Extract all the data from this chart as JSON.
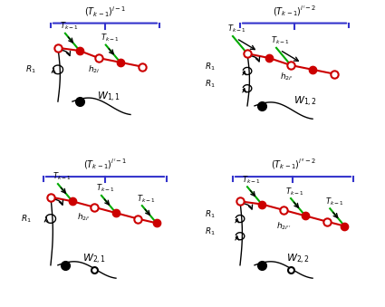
{
  "title": "",
  "background": "#ffffff",
  "blue_brace_color": "#3333cc",
  "red_line_color": "#cc0000",
  "green_line_color": "#00aa00",
  "dark_node_color": "#000000",
  "red_node_color": "#cc0000",
  "open_node_color": "#ffffff",
  "arrow_color": "#333333",
  "panels": [
    {
      "label": "W_{1,1}",
      "top_label": "$(T_{k-1})^{i-1}$",
      "R1_labels": [
        "R_1"
      ],
      "h_label": "h_{2i}",
      "has_double_R1": false,
      "n_green": 2,
      "n_red_segments": 4
    },
    {
      "label": "W_{1,2}",
      "top_label": "$(T_{k-1})^{i'-2}$",
      "R1_labels": [
        "R_1",
        "R_1"
      ],
      "h_label": "h_{2i'}",
      "has_double_R1": true,
      "n_green": 2,
      "n_red_segments": 4
    },
    {
      "label": "W_{2,1}",
      "top_label": "$(T_{k-1})^{i'-1}$",
      "R1_labels": [
        "R_1"
      ],
      "h_label": "h_{2i'}",
      "has_double_R1": false,
      "n_green": 3,
      "n_red_segments": 6
    },
    {
      "label": "W_{2,2}",
      "top_label": "$(T_{k-1})^{i''-2}$",
      "R1_labels": [
        "R_1",
        "R_1"
      ],
      "h_label": "h_{2i''}",
      "has_double_R1": true,
      "n_green": 3,
      "n_red_segments": 6
    }
  ]
}
